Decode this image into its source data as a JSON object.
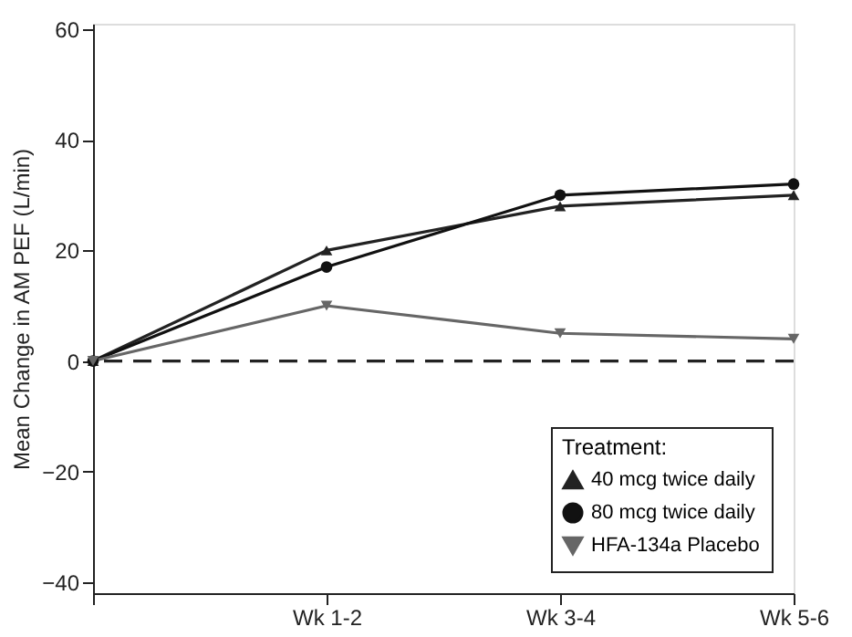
{
  "chart_data": {
    "type": "line",
    "ylabel": "Mean Change in AM PEF (L/min)",
    "legend_title": "Treatment:",
    "categories": [
      null,
      "Wk 1-2",
      "Wk 3-4",
      "Wk 5-6"
    ],
    "series": [
      {
        "name": "40 mcg twice daily",
        "color": "#222222",
        "marker": "triangle",
        "values": [
          0,
          20,
          28,
          30
        ]
      },
      {
        "name": "80 mcg twice daily",
        "color": "#111111",
        "marker": "circle",
        "values": [
          0,
          17,
          30,
          32
        ]
      },
      {
        "name": "HFA-134a Placebo",
        "color": "#666666",
        "marker": "triangle-down",
        "values": [
          0,
          10,
          5,
          4
        ]
      }
    ],
    "ylim": [
      -42,
      61
    ],
    "yticks": [
      -40,
      -20,
      0,
      20,
      40,
      60
    ],
    "grid": false,
    "legend": "bottom right",
    "ref_lines": [
      {
        "axis": "y",
        "value": 0,
        "line_style": "dashed",
        "color": "#222222"
      }
    ]
  }
}
